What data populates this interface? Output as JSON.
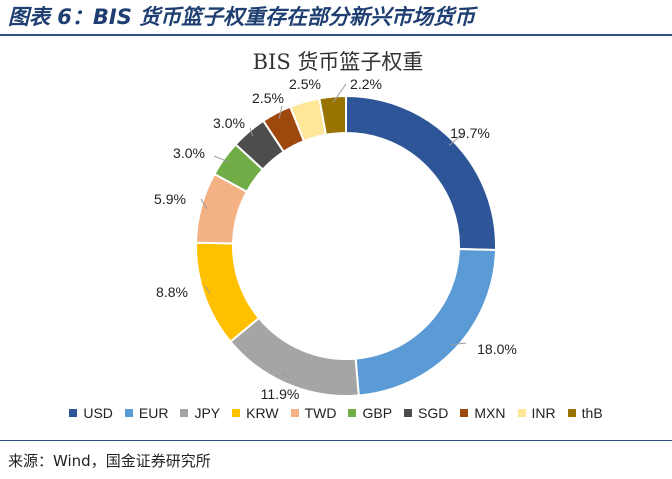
{
  "figure_title": "图表 6：BIS 货币篮子权重存在部分新兴市场货币",
  "source": "来源：Wind，国金证券研究所",
  "chart_data": {
    "type": "pie",
    "title": "BIS 货币篮子权重",
    "categories": [
      "USD",
      "EUR",
      "JPY",
      "KRW",
      "TWD",
      "GBP",
      "SGD",
      "MXN",
      "INR",
      "thB"
    ],
    "values": [
      19.7,
      18.0,
      11.9,
      8.8,
      5.9,
      3.0,
      3.0,
      2.5,
      2.5,
      2.2
    ],
    "labels": [
      "19.7%",
      "18.0%",
      "11.9%",
      "8.8%",
      "5.9%",
      "3.0%",
      "3.0%",
      "2.5%",
      "2.5%",
      "2.2%"
    ],
    "colors": [
      "#2e5597",
      "#5b9bd5",
      "#a5a5a5",
      "#ffc000",
      "#f4b183",
      "#70ad47",
      "#4d4d4d",
      "#9e480e",
      "#ffe699",
      "#997300"
    ],
    "legend_position": "bottom",
    "donut": true
  }
}
